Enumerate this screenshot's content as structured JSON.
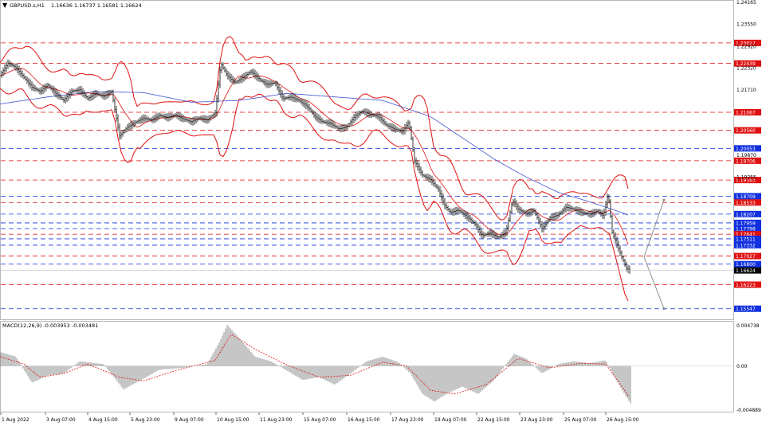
{
  "chart_data": [
    {
      "type": "candlestick",
      "header": {
        "symbol": "GBPUSD.s,H1",
        "ohlc": "1.16636 1.16737 1.16581 1.16624"
      },
      "y_axis": {
        "range": [
          1.1525,
          1.242
        ],
        "tick_labels": [
          "1.24165",
          "1.23550",
          "1.22920",
          "1.22320",
          "1.21710",
          "1.19870",
          "1.19255"
        ],
        "last_price": "1.16624"
      },
      "x_axis": {
        "tick_labels": [
          "1 Aug 2022",
          "3 Aug 07:00",
          "4 Aug 15:00",
          "5 Aug 23:00",
          "9 Aug 07:00",
          "10 Aug 15:00",
          "11 Aug 23:00",
          "15 Aug 07:00",
          "16 Aug 15:00",
          "17 Aug 23:00",
          "19 Aug 07:00",
          "22 Aug 15:00",
          "23 Aug 23:00",
          "25 Aug 07:00",
          "26 Aug 15:00"
        ]
      },
      "levels": [
        {
          "price": 1.23017,
          "label": "1.23017",
          "color": "#e01010",
          "style": "dash"
        },
        {
          "price": 1.22439,
          "label": "1.22439",
          "color": "#e01010",
          "style": "dash"
        },
        {
          "price": 1.21067,
          "label": "1.21067",
          "color": "#e01010",
          "style": "dash"
        },
        {
          "price": 1.2056,
          "label": "1.20560",
          "color": "#e01010",
          "style": "dash"
        },
        {
          "price": 1.20053,
          "label": "1.20053",
          "color": "#1030e0",
          "style": "dash"
        },
        {
          "price": 1.19706,
          "label": "1.19706",
          "color": "#e01010",
          "style": "dash"
        },
        {
          "price": 1.19163,
          "label": "1.19163",
          "color": "#e01010",
          "style": "dash"
        },
        {
          "price": 1.18709,
          "label": "1.18709",
          "color": "#1030e0",
          "style": "dash"
        },
        {
          "price": 1.18533,
          "label": "1.18533",
          "color": "#e01010",
          "style": "dash"
        },
        {
          "price": 1.18207,
          "label": "1.18207",
          "color": "#1030e0",
          "style": "dash"
        },
        {
          "price": 1.17959,
          "label": "1.17959",
          "color": "#1030e0",
          "style": "dash"
        },
        {
          "price": 1.17798,
          "label": "1.17798",
          "color": "#1030e0",
          "style": "dash"
        },
        {
          "price": 1.17641,
          "label": "1.17641",
          "color": "#e01010",
          "style": "dash"
        },
        {
          "price": 1.17511,
          "label": "1.17511",
          "color": "#1030e0",
          "style": "dash"
        },
        {
          "price": 1.17332,
          "label": "1.17332",
          "color": "#1030e0",
          "style": "dash"
        },
        {
          "price": 1.17027,
          "label": "1.17027",
          "color": "#e01010",
          "style": "dash"
        },
        {
          "price": 1.168,
          "label": "1.16800",
          "color": "#1030e0",
          "style": "dash"
        },
        {
          "price": 1.16223,
          "label": "1.16223",
          "color": "#e01010",
          "style": "dash"
        },
        {
          "price": 1.15547,
          "label": "1.15547",
          "color": "#1030e0",
          "style": "dash"
        }
      ],
      "price_points": [
        [
          0,
          1.221
        ],
        [
          10,
          1.2245
        ],
        [
          20,
          1.2232
        ],
        [
          30,
          1.2205
        ],
        [
          40,
          1.2178
        ],
        [
          50,
          1.2165
        ],
        [
          60,
          1.2183
        ],
        [
          70,
          1.216
        ],
        [
          80,
          1.214
        ],
        [
          90,
          1.2166
        ],
        [
          100,
          1.217
        ],
        [
          110,
          1.2145
        ],
        [
          120,
          1.216
        ],
        [
          130,
          1.2152
        ],
        [
          140,
          1.2165
        ],
        [
          150,
          1.204
        ],
        [
          160,
          1.2065
        ],
        [
          170,
          1.2078
        ],
        [
          180,
          1.209
        ],
        [
          190,
          1.2085
        ],
        [
          200,
          1.2098
        ],
        [
          210,
          1.2092
        ],
        [
          220,
          1.2099
        ],
        [
          230,
          1.2088
        ],
        [
          240,
          1.208
        ],
        [
          250,
          1.2091
        ],
        [
          260,
          1.2085
        ],
        [
          270,
          1.2105
        ],
        [
          277,
          1.2245
        ],
        [
          285,
          1.221
        ],
        [
          295,
          1.219
        ],
        [
          305,
          1.2205
        ],
        [
          315,
          1.2222
        ],
        [
          325,
          1.22
        ],
        [
          335,
          1.2185
        ],
        [
          345,
          1.219
        ],
        [
          355,
          1.2145
        ],
        [
          365,
          1.215
        ],
        [
          375,
          1.214
        ],
        [
          385,
          1.2125
        ],
        [
          395,
          1.2095
        ],
        [
          405,
          1.208
        ],
        [
          415,
          1.2075
        ],
        [
          425,
          1.206
        ],
        [
          435,
          1.2065
        ],
        [
          445,
          1.2095
        ],
        [
          455,
          1.211
        ],
        [
          465,
          1.21
        ],
        [
          475,
          1.2095
        ],
        [
          485,
          1.207
        ],
        [
          495,
          1.206
        ],
        [
          505,
          1.2052
        ],
        [
          513,
          1.208
        ],
        [
          520,
          1.197
        ],
        [
          530,
          1.193
        ],
        [
          540,
          1.1918
        ],
        [
          550,
          1.189
        ],
        [
          558,
          1.1845
        ],
        [
          565,
          1.1825
        ],
        [
          575,
          1.1832
        ],
        [
          585,
          1.1815
        ],
        [
          595,
          1.1795
        ],
        [
          605,
          1.176
        ],
        [
          615,
          1.1768
        ],
        [
          625,
          1.1755
        ],
        [
          635,
          1.177
        ],
        [
          643,
          1.186
        ],
        [
          650,
          1.1835
        ],
        [
          660,
          1.1822
        ],
        [
          670,
          1.183
        ],
        [
          680,
          1.178
        ],
        [
          690,
          1.181
        ],
        [
          700,
          1.1818
        ],
        [
          710,
          1.184
        ],
        [
          720,
          1.1835
        ],
        [
          730,
          1.1825
        ],
        [
          740,
          1.182
        ],
        [
          750,
          1.183
        ],
        [
          757,
          1.1815
        ],
        [
          763,
          1.188
        ],
        [
          768,
          1.177
        ],
        [
          775,
          1.173
        ],
        [
          780,
          1.17
        ],
        [
          786,
          1.1668
        ],
        [
          791,
          1.1662
        ]
      ],
      "sma": [
        [
          0,
          1.213
        ],
        [
          60,
          1.215
        ],
        [
          120,
          1.2165
        ],
        [
          180,
          1.2162
        ],
        [
          240,
          1.2135
        ],
        [
          300,
          1.214
        ],
        [
          360,
          1.216
        ],
        [
          420,
          1.215
        ],
        [
          480,
          1.214
        ],
        [
          540,
          1.2095
        ],
        [
          580,
          1.2035
        ],
        [
          620,
          1.1975
        ],
        [
          660,
          1.1925
        ],
        [
          700,
          1.1882
        ],
        [
          740,
          1.1855
        ],
        [
          780,
          1.1825
        ],
        [
          791,
          1.1815
        ]
      ],
      "macd": {
        "header": "MACD(12,26,9) -0.003953 -0.003481",
        "range": [
          -0.004889,
          0.004738
        ],
        "tick_labels": [
          "0.004738",
          "0.00",
          "-0.004889"
        ],
        "histogram_points": [
          [
            0,
            0.0015
          ],
          [
            20,
            0.001
          ],
          [
            40,
            -0.0018
          ],
          [
            60,
            -0.001
          ],
          [
            80,
            -0.0008
          ],
          [
            100,
            0.0005
          ],
          [
            130,
            0.0002
          ],
          [
            155,
            -0.0025
          ],
          [
            175,
            -0.0016
          ],
          [
            200,
            -0.0004
          ],
          [
            230,
            -0.0002
          ],
          [
            260,
            0.0002
          ],
          [
            275,
            0.0025
          ],
          [
            285,
            0.0044
          ],
          [
            300,
            0.003
          ],
          [
            320,
            0.001
          ],
          [
            340,
            0.0005
          ],
          [
            360,
            -0.0005
          ],
          [
            380,
            -0.0015
          ],
          [
            400,
            -0.0012
          ],
          [
            420,
            -0.002
          ],
          [
            440,
            -0.0008
          ],
          [
            460,
            0.0005
          ],
          [
            480,
            0.001
          ],
          [
            500,
            0.0004
          ],
          [
            515,
            -0.0008
          ],
          [
            530,
            -0.003
          ],
          [
            545,
            -0.0038
          ],
          [
            560,
            -0.003
          ],
          [
            580,
            -0.0022
          ],
          [
            600,
            -0.003
          ],
          [
            620,
            -0.0015
          ],
          [
            645,
            0.0013
          ],
          [
            660,
            0.0008
          ],
          [
            680,
            -0.0008
          ],
          [
            700,
            0.0002
          ],
          [
            720,
            0.0005
          ],
          [
            740,
            0.0003
          ],
          [
            760,
            0.0006
          ],
          [
            770,
            -0.001
          ],
          [
            780,
            -0.0025
          ],
          [
            791,
            -0.004
          ]
        ],
        "signal_points": [
          [
            0,
            0.001
          ],
          [
            30,
            0.0002
          ],
          [
            50,
            -0.0012
          ],
          [
            80,
            -0.0008
          ],
          [
            110,
            0.0002
          ],
          [
            150,
            -0.0012
          ],
          [
            180,
            -0.0016
          ],
          [
            220,
            -0.0005
          ],
          [
            270,
            0.0006
          ],
          [
            290,
            0.0034
          ],
          [
            320,
            0.0018
          ],
          [
            360,
            0.0001
          ],
          [
            400,
            -0.0012
          ],
          [
            440,
            -0.001
          ],
          [
            480,
            0.0004
          ],
          [
            510,
            0.0
          ],
          [
            540,
            -0.0026
          ],
          [
            570,
            -0.003
          ],
          [
            610,
            -0.002
          ],
          [
            650,
            0.0008
          ],
          [
            690,
            -0.0002
          ],
          [
            730,
            0.0003
          ],
          [
            760,
            0.0002
          ],
          [
            791,
            -0.0035
          ]
        ]
      },
      "projections": [
        {
          "from": [
            808,
            1.17
          ],
          "to": [
            833,
            1.186
          ]
        },
        {
          "from": [
            808,
            1.17
          ],
          "to": [
            833,
            1.1555
          ]
        }
      ]
    }
  ]
}
